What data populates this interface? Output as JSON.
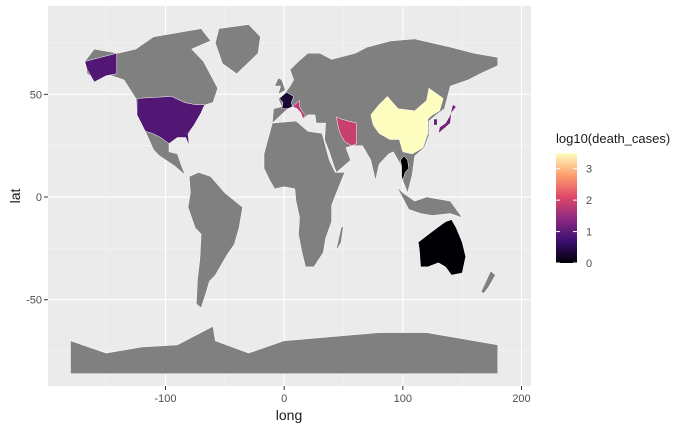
{
  "chart_data": {
    "type": "choropleth-map",
    "x_axis": {
      "label": "long",
      "range": [
        -199,
        208
      ],
      "ticks": [
        -100,
        0,
        100,
        200
      ]
    },
    "y_axis": {
      "label": "lat",
      "range": [
        -92,
        93
      ],
      "ticks": [
        -50,
        0,
        50
      ]
    },
    "grid": true,
    "legend": {
      "title": "log10(death_cases)",
      "placement": "right",
      "range": [
        0,
        3.5
      ],
      "ticks": [
        0,
        1,
        2,
        3
      ],
      "palette": [
        "#000004",
        "#3b0f70",
        "#8c2981",
        "#de4968",
        "#fe9f6d",
        "#fcfdbf"
      ]
    },
    "no_data_color": "#808080",
    "regions": [
      {
        "name": "China",
        "value": 3.5
      },
      {
        "name": "Iran",
        "value": 1.9
      },
      {
        "name": "Italy",
        "value": 1.8
      },
      {
        "name": "Japan",
        "value": 1.2
      },
      {
        "name": "South Korea",
        "value": 1.1
      },
      {
        "name": "United States",
        "value": 0.9
      },
      {
        "name": "France",
        "value": 0.3
      },
      {
        "name": "Thailand",
        "value": 0.0
      },
      {
        "name": "Australia",
        "value": 0.0
      }
    ]
  }
}
